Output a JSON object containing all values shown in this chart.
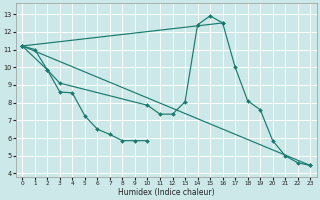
{
  "xlabel": "Humidex (Indice chaleur)",
  "background_color": "#cce8e8",
  "grid_color": "#ffffff",
  "line_color": "#1a7a6e",
  "xlim": [
    -0.5,
    23.5
  ],
  "ylim": [
    3.8,
    13.6
  ],
  "xticks": [
    0,
    1,
    2,
    3,
    4,
    5,
    6,
    7,
    8,
    9,
    10,
    11,
    12,
    13,
    14,
    15,
    16,
    17,
    18,
    19,
    20,
    21,
    22,
    23
  ],
  "yticks": [
    4,
    5,
    6,
    7,
    8,
    9,
    10,
    11,
    12,
    13
  ],
  "series": [
    [
      0,
      1,
      2,
      3,
      4,
      5,
      6,
      7,
      8,
      9,
      10
    ],
    [
      11.2,
      11.0,
      9.85,
      8.6,
      8.55,
      7.25,
      6.5,
      6.2,
      5.85,
      5.85,
      5.85
    ],
    [
      0,
      2,
      3,
      10,
      11,
      12,
      13,
      14,
      15,
      16
    ],
    [
      11.2,
      9.85,
      9.1,
      7.85,
      7.35,
      7.35,
      8.05,
      12.4,
      12.9,
      12.5
    ],
    [
      0,
      16,
      17,
      18,
      19,
      20,
      21,
      22,
      23
    ],
    [
      11.2,
      12.5,
      10.0,
      8.1,
      7.6,
      5.85,
      5.0,
      4.6,
      4.45
    ],
    [
      0,
      23
    ],
    [
      11.2,
      4.45
    ]
  ]
}
